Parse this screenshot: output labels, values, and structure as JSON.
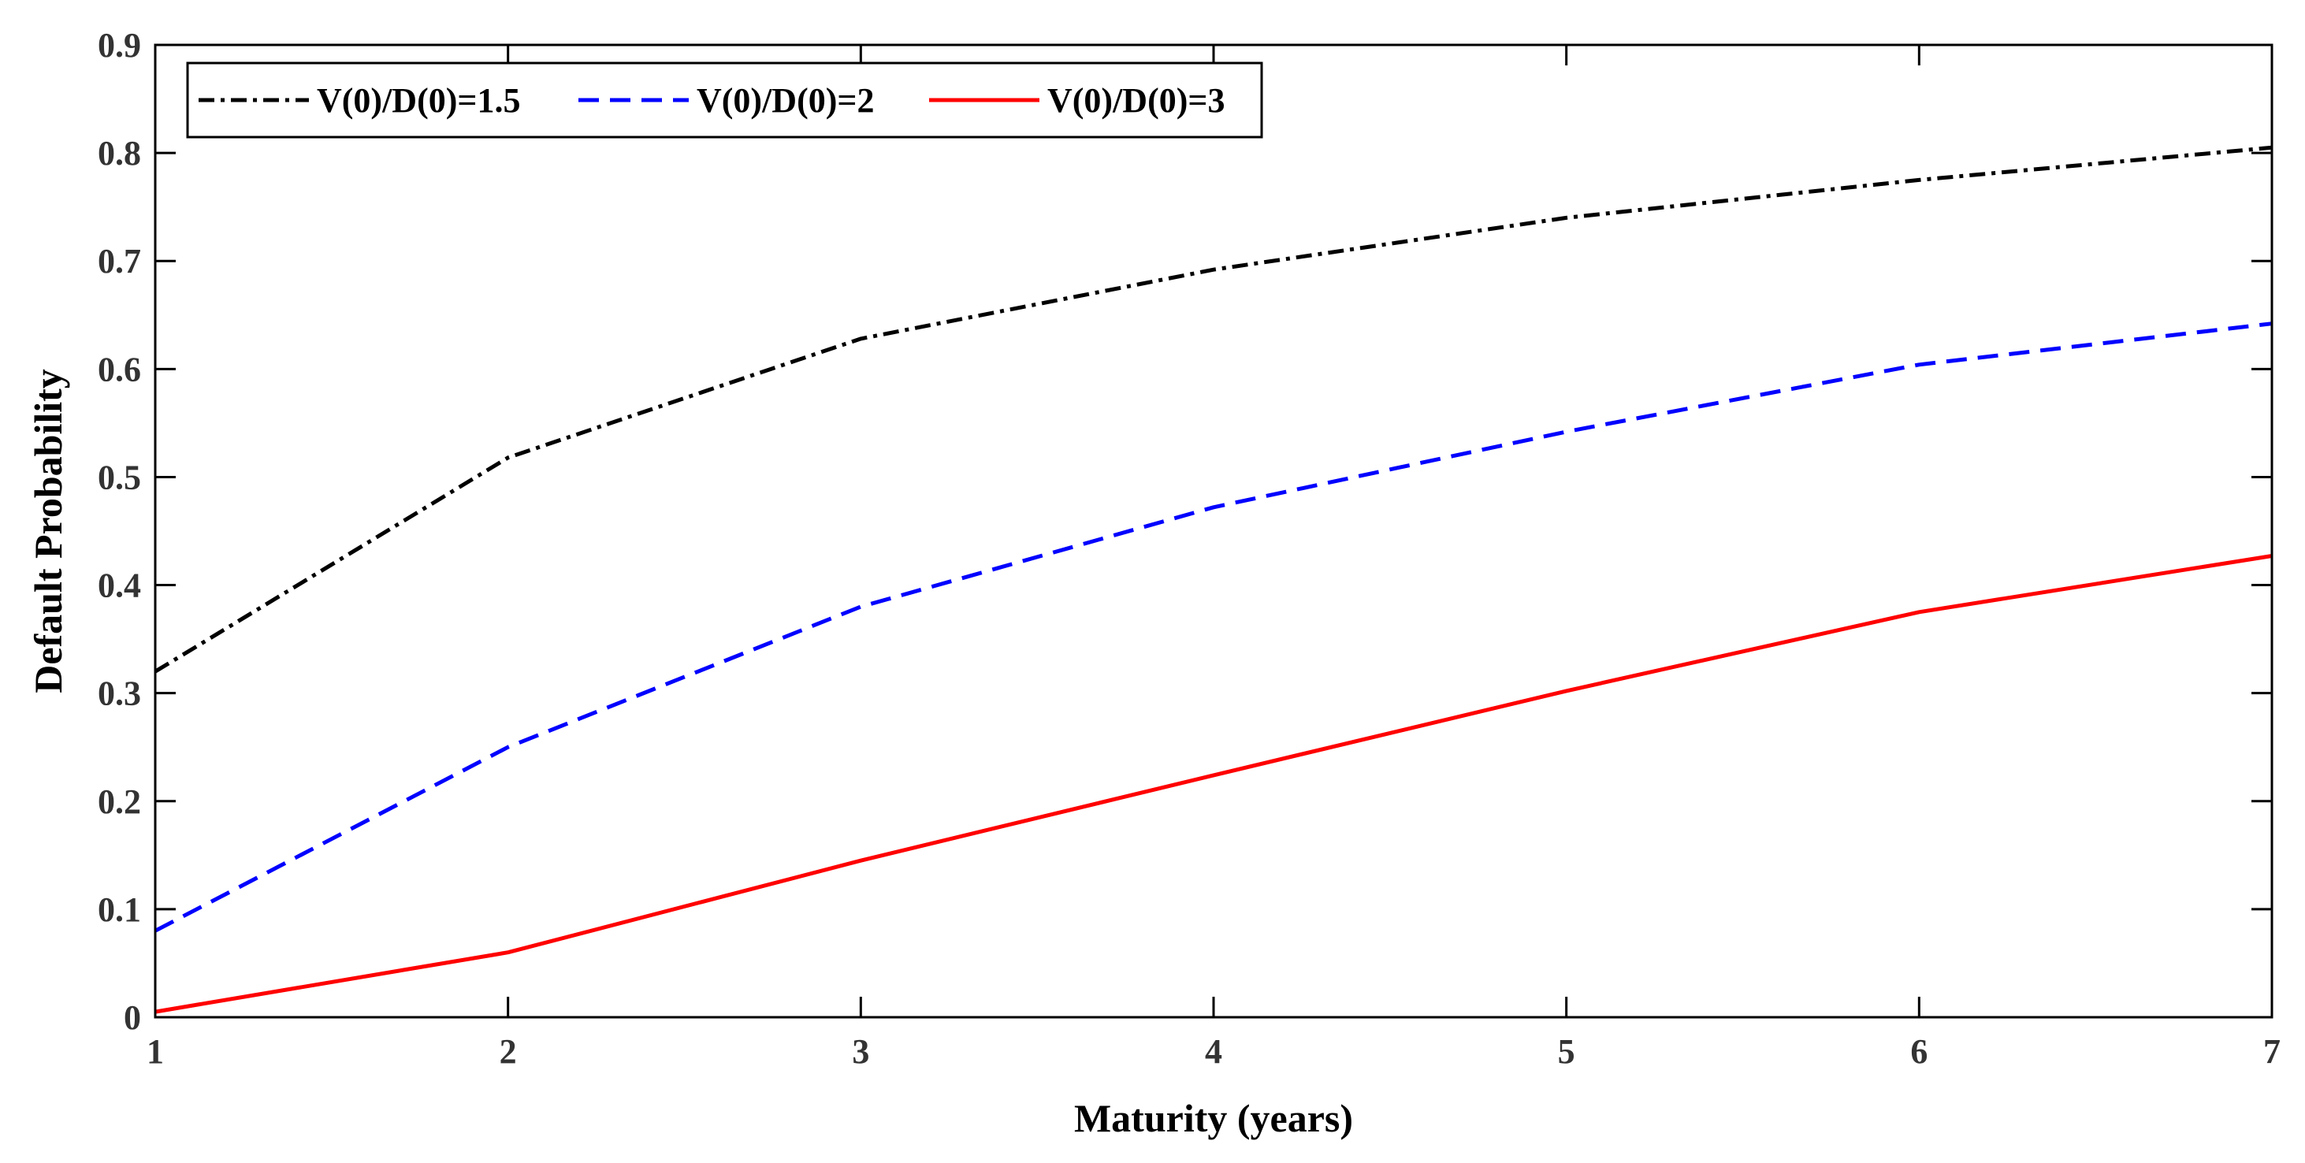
{
  "chart_data": {
    "type": "line",
    "title": "",
    "xlabel": "Maturity (years)",
    "ylabel": "Default Probability",
    "x": [
      1,
      2,
      3,
      4,
      5,
      6,
      7
    ],
    "xlim": [
      1,
      7
    ],
    "ylim": [
      0,
      0.9
    ],
    "xticks": [
      "1",
      "2",
      "3",
      "4",
      "5",
      "6",
      "7"
    ],
    "yticks": [
      "0",
      "0.1",
      "0.2",
      "0.3",
      "0.4",
      "0.5",
      "0.6",
      "0.7",
      "0.8",
      "0.9"
    ],
    "grid": false,
    "legend_position": "top-left",
    "series": [
      {
        "name": "V(0)/D(0)=1.5",
        "color": "#000000",
        "style": "dash-dot",
        "values": [
          0.32,
          0.518,
          0.628,
          0.692,
          0.74,
          0.775,
          0.805
        ]
      },
      {
        "name": "V(0)/D(0)=2",
        "color": "#0000ff",
        "style": "dashed",
        "values": [
          0.08,
          0.25,
          0.38,
          0.472,
          0.542,
          0.604,
          0.642
        ]
      },
      {
        "name": "V(0)/D(0)=3",
        "color": "#ff0000",
        "style": "solid",
        "values": [
          0.005,
          0.06,
          0.145,
          0.224,
          0.302,
          0.375,
          0.427
        ]
      }
    ]
  }
}
